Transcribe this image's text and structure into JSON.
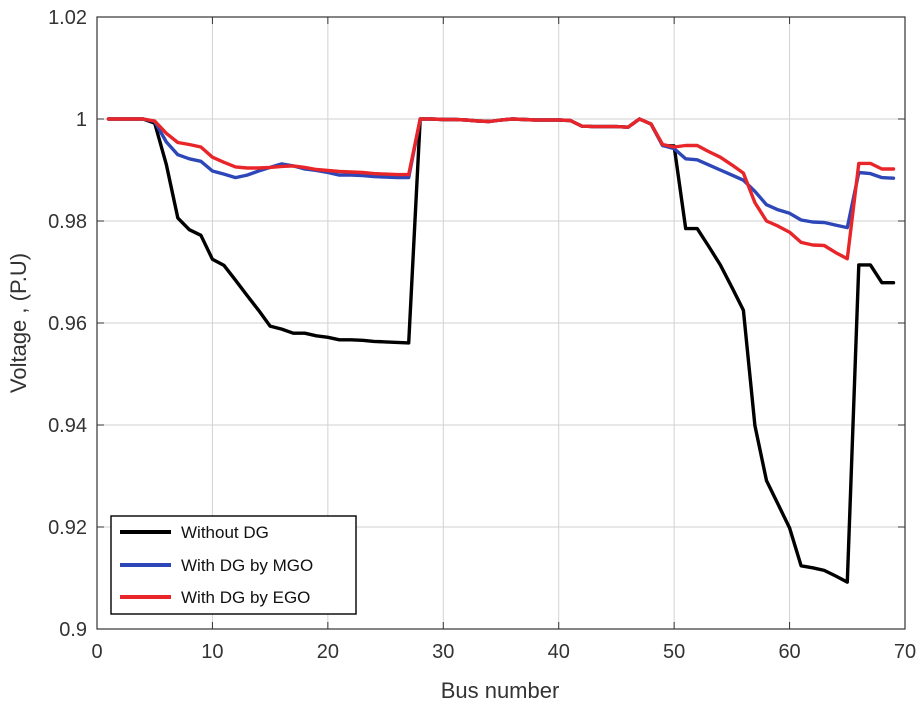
{
  "chart_data": {
    "type": "line",
    "title": "",
    "xlabel": "Bus number",
    "ylabel": "Voltage , (P.U)",
    "xlim": [
      0,
      70
    ],
    "ylim": [
      0.9,
      1.02
    ],
    "xticks": [
      0,
      10,
      20,
      30,
      40,
      50,
      60,
      70
    ],
    "yticks": [
      0.9,
      0.92,
      0.94,
      0.96,
      0.98,
      1,
      1.02
    ],
    "xtick_labels": [
      "0",
      "10",
      "20",
      "30",
      "40",
      "50",
      "60",
      "70"
    ],
    "ytick_labels": [
      "0.9",
      "0.92",
      "0.94",
      "0.96",
      "0.98",
      "1",
      "1.02"
    ],
    "grid": true,
    "legend_position": "bottom-left",
    "series": [
      {
        "name": "Without DG",
        "color": "#000000",
        "x": [
          1,
          2,
          3,
          4,
          5,
          6,
          7,
          8,
          9,
          10,
          11,
          12,
          13,
          14,
          15,
          16,
          17,
          18,
          19,
          20,
          21,
          22,
          23,
          24,
          25,
          26,
          27,
          28,
          29,
          30,
          31,
          32,
          33,
          34,
          35,
          36,
          37,
          38,
          39,
          40,
          41,
          42,
          43,
          44,
          45,
          46,
          47,
          48,
          49,
          50,
          51,
          52,
          53,
          54,
          55,
          56,
          57,
          58,
          59,
          60,
          61,
          62,
          63,
          64,
          65,
          66,
          67,
          68,
          69
        ],
        "values": [
          1.0,
          1.0,
          1.0,
          1.0,
          0.9992,
          0.9911,
          0.9806,
          0.9783,
          0.9772,
          0.9725,
          0.9713,
          0.9684,
          0.9654,
          0.9625,
          0.9594,
          0.9588,
          0.958,
          0.958,
          0.9575,
          0.9572,
          0.9567,
          0.9567,
          0.9566,
          0.9564,
          0.9563,
          0.9562,
          0.9561,
          1.0,
          1.0,
          0.9999,
          0.9999,
          0.9998,
          0.9996,
          0.9995,
          0.9998,
          1.0,
          0.9999,
          0.9998,
          0.9998,
          0.9998,
          0.9997,
          0.9986,
          0.9985,
          0.9985,
          0.9985,
          0.9984,
          1.0,
          0.999,
          0.9948,
          0.9947,
          0.9785,
          0.9785,
          0.975,
          0.9714,
          0.967,
          0.9625,
          0.9399,
          0.9291,
          0.9245,
          0.9198,
          0.9124,
          0.912,
          0.9115,
          0.9104,
          0.9092,
          0.9714,
          0.9714,
          0.9679,
          0.9679
        ]
      },
      {
        "name": "With DG by MGO",
        "color": "#2e47b8",
        "x": [
          1,
          2,
          3,
          4,
          5,
          6,
          7,
          8,
          9,
          10,
          11,
          12,
          13,
          14,
          15,
          16,
          17,
          18,
          19,
          20,
          21,
          22,
          23,
          24,
          25,
          26,
          27,
          28,
          29,
          30,
          31,
          32,
          33,
          34,
          35,
          36,
          37,
          38,
          39,
          40,
          41,
          42,
          43,
          44,
          45,
          46,
          47,
          48,
          49,
          50,
          51,
          52,
          53,
          54,
          55,
          56,
          57,
          58,
          59,
          60,
          61,
          62,
          63,
          64,
          65,
          66,
          67,
          68,
          69
        ],
        "values": [
          1.0,
          1.0,
          1.0,
          1.0,
          0.9995,
          0.9955,
          0.993,
          0.9922,
          0.9917,
          0.9898,
          0.9892,
          0.9885,
          0.989,
          0.9898,
          0.9905,
          0.9912,
          0.9908,
          0.9902,
          0.9899,
          0.9895,
          0.989,
          0.989,
          0.9889,
          0.9887,
          0.9886,
          0.9885,
          0.9885,
          1.0,
          1.0,
          0.9999,
          0.9999,
          0.9998,
          0.9996,
          0.9995,
          0.9998,
          1.0,
          0.9999,
          0.9998,
          0.9998,
          0.9998,
          0.9997,
          0.9986,
          0.9985,
          0.9985,
          0.9985,
          0.9984,
          1.0,
          0.999,
          0.9948,
          0.9942,
          0.9922,
          0.992,
          0.991,
          0.99,
          0.989,
          0.988,
          0.9858,
          0.9832,
          0.9822,
          0.9815,
          0.9802,
          0.9798,
          0.9797,
          0.9792,
          0.9787,
          0.9895,
          0.9893,
          0.9885,
          0.9884
        ]
      },
      {
        "name": "With DG by EGO",
        "color": "#e8262a",
        "x": [
          1,
          2,
          3,
          4,
          5,
          6,
          7,
          8,
          9,
          10,
          11,
          12,
          13,
          14,
          15,
          16,
          17,
          18,
          19,
          20,
          21,
          22,
          23,
          24,
          25,
          26,
          27,
          28,
          29,
          30,
          31,
          32,
          33,
          34,
          35,
          36,
          37,
          38,
          39,
          40,
          41,
          42,
          43,
          44,
          45,
          46,
          47,
          48,
          49,
          50,
          51,
          52,
          53,
          54,
          55,
          56,
          57,
          58,
          59,
          60,
          61,
          62,
          63,
          64,
          65,
          66,
          67,
          68,
          69
        ],
        "values": [
          1.0,
          1.0,
          1.0,
          1.0,
          0.9996,
          0.9972,
          0.9954,
          0.995,
          0.9945,
          0.9925,
          0.9915,
          0.9906,
          0.9904,
          0.9904,
          0.9905,
          0.9907,
          0.9908,
          0.9905,
          0.9901,
          0.9899,
          0.9897,
          0.9896,
          0.9895,
          0.9893,
          0.9892,
          0.9891,
          0.9891,
          1.0,
          1.0,
          0.9999,
          0.9999,
          0.9998,
          0.9996,
          0.9995,
          0.9998,
          1.0,
          0.9999,
          0.9998,
          0.9998,
          0.9998,
          0.9997,
          0.9986,
          0.9985,
          0.9985,
          0.9985,
          0.9984,
          1.0,
          0.999,
          0.995,
          0.9945,
          0.9948,
          0.9948,
          0.9936,
          0.9925,
          0.991,
          0.9894,
          0.9836,
          0.98,
          0.979,
          0.9778,
          0.9758,
          0.9753,
          0.9752,
          0.9738,
          0.9726,
          0.9913,
          0.9913,
          0.9902,
          0.9902
        ]
      }
    ]
  }
}
